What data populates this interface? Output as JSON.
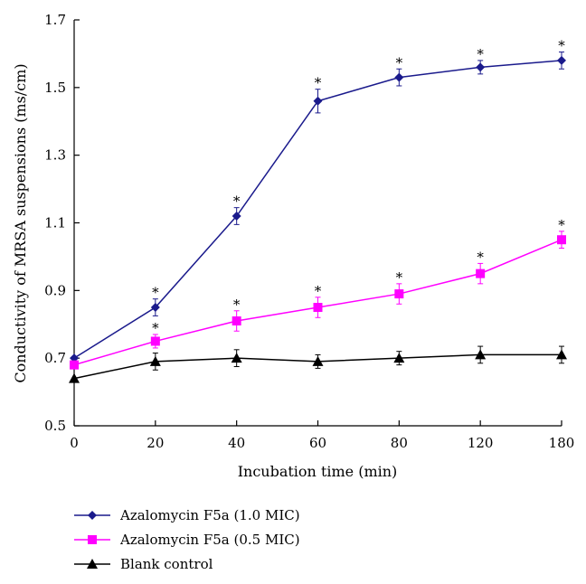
{
  "chart_data": {
    "type": "line",
    "title": "",
    "xlabel": "Incubation time (min)",
    "ylabel": "Conductivity of MRSA suspensions (ms/cm)",
    "x_tick_labels": [
      "0",
      "20",
      "40",
      "60",
      "80",
      "120",
      "180"
    ],
    "y_tick_labels": [
      "0.5",
      "0.7",
      "0.9",
      "1.1",
      "1.3",
      "1.5",
      "1.7"
    ],
    "y_ticks": [
      0.5,
      0.7,
      0.9,
      1.1,
      1.3,
      1.5,
      1.7
    ],
    "ylim": [
      0.5,
      1.7
    ],
    "grid": false,
    "legend_position": "bottom-left",
    "significance_marker": "*",
    "series": [
      {
        "name": "Azalomycin F5a (1.0 MIC)",
        "color": "#1a1a8c",
        "marker": "diamond",
        "values": [
          0.7,
          0.85,
          1.12,
          1.46,
          1.53,
          1.56,
          1.58
        ],
        "errors": [
          0.0,
          0.025,
          0.025,
          0.035,
          0.025,
          0.02,
          0.025
        ],
        "significant": [
          false,
          true,
          true,
          true,
          true,
          true,
          true
        ]
      },
      {
        "name": "Azalomycin F5a (0.5 MIC)",
        "color": "#ff00ff",
        "marker": "square",
        "values": [
          0.68,
          0.75,
          0.81,
          0.85,
          0.89,
          0.95,
          1.05
        ],
        "errors": [
          0.0,
          0.02,
          0.03,
          0.03,
          0.03,
          0.03,
          0.025
        ],
        "significant": [
          false,
          true,
          true,
          true,
          true,
          true,
          true
        ]
      },
      {
        "name": "Blank control",
        "color": "#000000",
        "marker": "triangle",
        "values": [
          0.64,
          0.69,
          0.7,
          0.69,
          0.7,
          0.71,
          0.71
        ],
        "errors": [
          0.0,
          0.025,
          0.025,
          0.02,
          0.02,
          0.025,
          0.025
        ],
        "significant": [
          false,
          false,
          false,
          false,
          false,
          false,
          false
        ]
      }
    ]
  }
}
